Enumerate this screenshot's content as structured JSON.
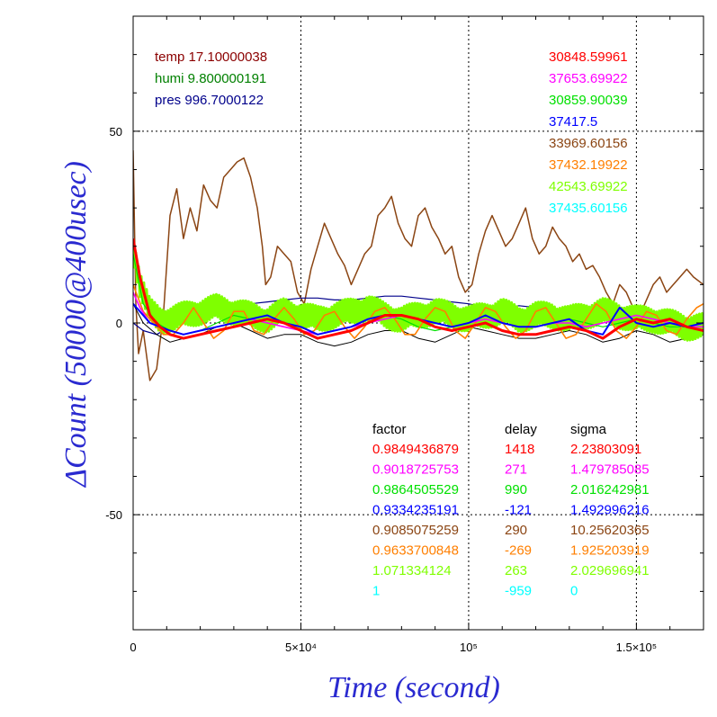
{
  "chart_data": {
    "type": "line",
    "xlabel": "Time (second)",
    "ylabel": "ΔCount (50000@400usec)",
    "xlim": [
      0,
      170000
    ],
    "ylim": [
      -80,
      80
    ],
    "x_ticks": [
      {
        "value": 0,
        "label": "0"
      },
      {
        "value": 50000,
        "label": "5×10⁴"
      },
      {
        "value": 100000,
        "label": "10⁵"
      },
      {
        "value": 150000,
        "label": "1.5×10⁵"
      }
    ],
    "y_ticks": [
      {
        "value": -50,
        "label": "-50"
      },
      {
        "value": 0,
        "label": "0"
      },
      {
        "value": 50,
        "label": "50"
      }
    ],
    "grid": true,
    "env_legend": [
      {
        "text": "temp 17.10000038",
        "color": "#8b0000"
      },
      {
        "text": "humi 9.800000191",
        "color": "#008000"
      },
      {
        "text": "pres 996.7000122",
        "color": "#00008b"
      }
    ],
    "series_ids": [
      {
        "text": "30848.59961",
        "color": "#ff0000"
      },
      {
        "text": "37653.69922",
        "color": "#ff00ff"
      },
      {
        "text": "30859.90039",
        "color": "#00e000"
      },
      {
        "text": "37417.5",
        "color": "#0000ff"
      },
      {
        "text": "33969.60156",
        "color": "#8b4513"
      },
      {
        "text": "37432.19922",
        "color": "#ff7f00"
      },
      {
        "text": "42543.69922",
        "color": "#7fff00"
      },
      {
        "text": "37435.60156",
        "color": "#00ffff"
      }
    ],
    "fit_table": {
      "headers": [
        "factor",
        "delay",
        "sigma"
      ],
      "rows": [
        {
          "factor": "0.9849436879",
          "delay": "1418",
          "sigma": "2.23803091",
          "color": "#ff0000"
        },
        {
          "factor": "0.9018725753",
          "delay": "271",
          "sigma": "1.479785085",
          "color": "#ff00ff"
        },
        {
          "factor": "0.9864505529",
          "delay": "990",
          "sigma": "2.016242981",
          "color": "#00e000"
        },
        {
          "factor": "0.9334235191",
          "delay": "-121",
          "sigma": "1.492996216",
          "color": "#0000ff"
        },
        {
          "factor": "0.9085075259",
          "delay": "290",
          "sigma": "10.25620365",
          "color": "#8b4513"
        },
        {
          "factor": "0.9633700848",
          "delay": "-269",
          "sigma": "1.925203919",
          "color": "#ff7f00"
        },
        {
          "factor": "1.071334124",
          "delay": "263",
          "sigma": "2.029696941",
          "color": "#7fff00"
        },
        {
          "factor": "1",
          "delay": "-959",
          "sigma": "0",
          "color": "#00ffff"
        }
      ]
    },
    "series": [
      {
        "color": "#8b4513",
        "width": 1.5,
        "x": [
          0,
          800,
          1600,
          3000,
          5000,
          7000,
          9000,
          11000,
          13000,
          15000,
          17000,
          19000,
          21000,
          23000,
          25000,
          27000,
          29000,
          31000,
          33000,
          35000,
          37000,
          38500,
          39500,
          41000,
          43000,
          45000,
          47000,
          49000,
          51000,
          53000,
          55000,
          57000,
          59000,
          61000,
          63000,
          65000,
          67000,
          69000,
          71000,
          73000,
          75000,
          77000,
          79000,
          81000,
          83000,
          85000,
          87000,
          89000,
          91000,
          93000,
          95000,
          97000,
          99000,
          101000,
          103000,
          105000,
          107000,
          109000,
          111000,
          113000,
          115000,
          117000,
          119000,
          121000,
          123000,
          125000,
          127000,
          129000,
          131000,
          133000,
          135000,
          137000,
          139000,
          141000,
          143000,
          145000,
          147000,
          149000,
          151000,
          153000,
          155000,
          157000,
          159000,
          161000,
          163000,
          165000,
          167000,
          170000
        ],
        "y": [
          45,
          5,
          -8,
          -2,
          -15,
          -12,
          2,
          28,
          35,
          22,
          30,
          24,
          36,
          32,
          30,
          38,
          40,
          42,
          43,
          38,
          30,
          20,
          10,
          12,
          20,
          18,
          16,
          8,
          5,
          14,
          20,
          26,
          22,
          18,
          15,
          10,
          14,
          18,
          20,
          28,
          30,
          33,
          26,
          22,
          20,
          28,
          30,
          25,
          22,
          18,
          20,
          12,
          8,
          10,
          18,
          24,
          28,
          24,
          20,
          22,
          26,
          30,
          22,
          18,
          20,
          25,
          22,
          20,
          16,
          18,
          14,
          15,
          12,
          8,
          5,
          10,
          8,
          4,
          2,
          6,
          10,
          12,
          8,
          10,
          12,
          14,
          12,
          10
        ]
      },
      {
        "color": "#00008b",
        "width": 1.2,
        "x": [
          0,
          3000,
          7000,
          11000,
          15000,
          20000,
          25000,
          30000,
          35000,
          40000,
          45000,
          50000,
          55000,
          60000,
          65000,
          70000,
          75000,
          80000,
          85000,
          90000,
          95000,
          100000,
          105000,
          110000,
          115000,
          120000,
          125000,
          130000,
          135000,
          140000,
          145000,
          150000,
          155000,
          160000,
          165000,
          170000
        ],
        "y": [
          0,
          -2,
          -3,
          -1,
          1,
          2,
          3,
          4,
          5,
          5.5,
          6,
          6.5,
          6.5,
          6,
          6,
          6.5,
          7,
          7,
          6.5,
          6,
          5.5,
          5,
          4,
          4,
          4.5,
          4,
          3.5,
          3,
          3,
          2.5,
          2,
          1.5,
          1,
          0.5,
          0,
          0
        ]
      },
      {
        "color": "#000000",
        "width": 1.0,
        "x": [
          0,
          3000,
          7000,
          11000,
          15000,
          20000,
          25000,
          30000,
          35000,
          40000,
          45000,
          50000,
          55000,
          60000,
          65000,
          70000,
          75000,
          80000,
          85000,
          90000,
          95000,
          100000,
          105000,
          110000,
          115000,
          120000,
          125000,
          130000,
          135000,
          140000,
          145000,
          150000,
          155000,
          160000,
          165000,
          170000
        ],
        "y": [
          5,
          0,
          -3,
          -5,
          -4,
          -3,
          -1,
          0,
          -2,
          -4,
          -3,
          -3,
          -5,
          -6,
          -5,
          -3,
          -2,
          -2,
          -4,
          -5,
          -3,
          -1,
          -2,
          -3,
          -4,
          -4,
          -3,
          -2,
          -3,
          -5,
          -4,
          -2,
          -3,
          -5,
          -4,
          -3
        ]
      },
      {
        "color": "#7fff00",
        "width": 3.0,
        "noise": 3.5,
        "step": 400,
        "x": [
          0,
          2000,
          5000,
          8000,
          11000,
          15000,
          20000,
          25000,
          30000,
          35000,
          40000,
          45000,
          50000,
          55000,
          60000,
          65000,
          70000,
          75000,
          80000,
          85000,
          90000,
          95000,
          100000,
          105000,
          110000,
          115000,
          120000,
          125000,
          130000,
          135000,
          140000,
          145000,
          150000,
          155000,
          160000,
          165000,
          170000
        ],
        "y": [
          20,
          10,
          3,
          1,
          1,
          2,
          3,
          4,
          3,
          2,
          1,
          3,
          2,
          1,
          2,
          3,
          4,
          2,
          1,
          2,
          3,
          2,
          1,
          2,
          3,
          1,
          2,
          2,
          1,
          2,
          3,
          2,
          1,
          1,
          0,
          -1,
          -1
        ]
      },
      {
        "color": "#00e000",
        "width": 1.2,
        "x": [
          0,
          3000,
          7000,
          11000,
          15000,
          20000,
          25000,
          30000,
          35000,
          40000,
          45000,
          50000,
          55000,
          60000,
          65000,
          70000,
          75000,
          80000,
          85000,
          90000,
          95000,
          100000,
          105000,
          110000,
          115000,
          120000,
          125000,
          130000,
          135000,
          140000,
          145000,
          150000,
          155000,
          160000,
          165000,
          170000
        ],
        "y": [
          18,
          5,
          0,
          -2,
          -3,
          -2,
          0,
          2,
          1,
          0,
          -1,
          -2,
          -3,
          -2,
          -1,
          1,
          2,
          1,
          -1,
          -2,
          -1,
          0,
          1,
          0,
          -1,
          -1,
          0,
          1,
          0,
          -1,
          0,
          1,
          0,
          -1,
          -1,
          0
        ]
      },
      {
        "color": "#ff7f00",
        "width": 1.6,
        "x": [
          0,
          3000,
          6000,
          9000,
          12000,
          15000,
          18000,
          21000,
          24000,
          27000,
          30000,
          33000,
          36000,
          39000,
          42000,
          45000,
          48000,
          51000,
          54000,
          57000,
          60000,
          63000,
          66000,
          69000,
          72000,
          75000,
          78000,
          81000,
          84000,
          87000,
          90000,
          93000,
          96000,
          99000,
          102000,
          105000,
          108000,
          111000,
          114000,
          117000,
          120000,
          123000,
          126000,
          129000,
          132000,
          135000,
          138000,
          141000,
          144000,
          147000,
          150000,
          153000,
          156000,
          159000,
          162000,
          165000,
          168000,
          170000
        ],
        "y": [
          10,
          3,
          0,
          -3,
          -3,
          0,
          4,
          0,
          -4,
          -2,
          3,
          3,
          -2,
          -3,
          1,
          4,
          1,
          -3,
          -2,
          2,
          3,
          -1,
          -4,
          -1,
          3,
          4,
          1,
          -3,
          -3,
          1,
          4,
          3,
          -2,
          -4,
          0,
          4,
          3,
          -1,
          -4,
          -2,
          3,
          4,
          0,
          -4,
          -3,
          1,
          5,
          3,
          -2,
          -4,
          -1,
          3,
          2,
          -2,
          -3,
          1,
          4,
          5
        ]
      },
      {
        "color": "#ff00ff",
        "width": 1.6,
        "x": [
          0,
          2000,
          5000,
          8000,
          11000,
          15000,
          20000,
          25000,
          30000,
          35000,
          40000,
          45000,
          50000,
          55000,
          60000,
          65000,
          70000,
          75000,
          80000,
          85000,
          90000,
          95000,
          100000,
          105000,
          110000,
          115000,
          120000,
          125000,
          130000,
          135000,
          140000,
          145000,
          150000,
          155000,
          160000,
          165000,
          170000
        ],
        "y": [
          8,
          4,
          0,
          -1,
          -2,
          -3,
          -2,
          -1,
          0,
          1,
          0,
          -1,
          -2,
          -3,
          -2,
          -1,
          0,
          1,
          2,
          1,
          0,
          -1,
          0,
          1,
          0,
          -1,
          -1,
          0,
          0,
          -1,
          0,
          1,
          2,
          1,
          0,
          -1,
          -1
        ]
      },
      {
        "color": "#0000ff",
        "width": 2.0,
        "x": [
          0,
          2000,
          5000,
          8000,
          11000,
          15000,
          20000,
          25000,
          30000,
          35000,
          40000,
          45000,
          50000,
          55000,
          60000,
          65000,
          70000,
          75000,
          80000,
          85000,
          90000,
          95000,
          100000,
          105000,
          110000,
          115000,
          120000,
          125000,
          130000,
          135000,
          140000,
          145000,
          150000,
          155000,
          160000,
          165000,
          170000
        ],
        "y": [
          5,
          3,
          0,
          -1,
          -2,
          -3,
          -2,
          -1,
          0,
          1,
          2,
          0,
          -1,
          -3,
          -2,
          -1,
          1,
          2,
          2,
          1,
          0,
          -1,
          0,
          2,
          0,
          -1,
          -1,
          0,
          1,
          -2,
          -3,
          4,
          0,
          -1,
          0,
          -1,
          0
        ]
      },
      {
        "color": "#ff0000",
        "width": 3.0,
        "x": [
          0,
          2000,
          5000,
          8000,
          11000,
          15000,
          20000,
          25000,
          30000,
          35000,
          40000,
          45000,
          50000,
          55000,
          60000,
          65000,
          70000,
          75000,
          80000,
          85000,
          90000,
          95000,
          100000,
          105000,
          110000,
          115000,
          120000,
          125000,
          130000,
          135000,
          140000,
          145000,
          150000,
          155000,
          160000,
          165000,
          170000
        ],
        "y": [
          22,
          12,
          2,
          -1,
          -3,
          -4,
          -3,
          -2,
          -1,
          0,
          1,
          0,
          -2,
          -4,
          -3,
          -2,
          0,
          2,
          2,
          1,
          -1,
          -2,
          -1,
          0,
          -2,
          -3,
          -3,
          -2,
          -1,
          -2,
          -4,
          -1,
          1,
          0,
          1,
          -1,
          -2
        ]
      }
    ]
  }
}
